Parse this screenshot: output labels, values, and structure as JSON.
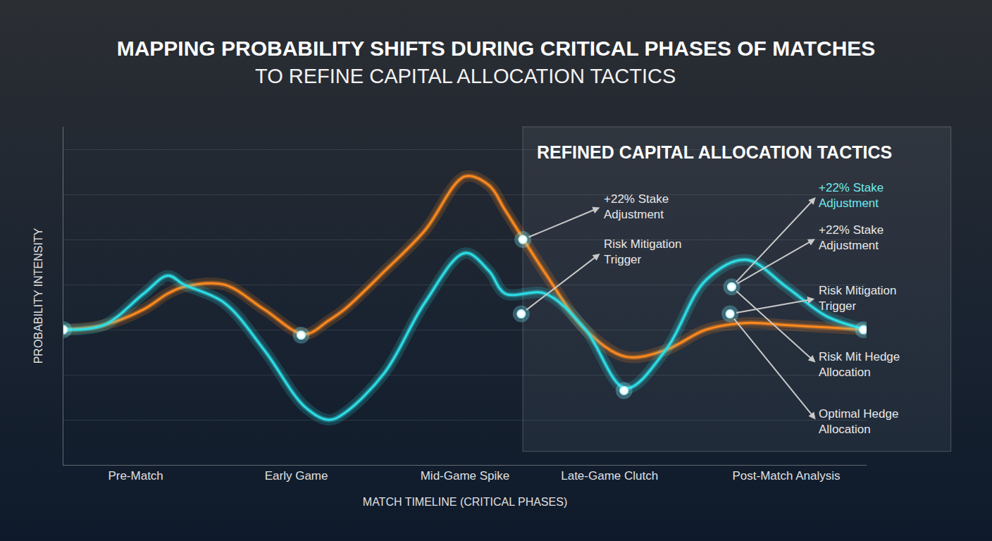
{
  "chart_data": {
    "type": "line",
    "title": "MAPPING PROBABILITY SHIFTS DURING CRITICAL PHASES OF MATCHES",
    "subtitle": "TO REFINE CAPITAL ALLOCATION TACTICS",
    "panel_title": "REFINED CAPITAL ALLOCATION TACTICS",
    "x_label": "MATCH TIMELINE (CRITICAL PHASES)",
    "y_label": "PROBABILITY INTENSITY",
    "x": [
      0,
      5,
      10,
      13,
      15,
      20,
      25,
      30,
      33,
      35,
      40,
      45,
      50,
      53,
      55,
      60,
      65,
      70,
      75,
      80,
      85,
      90,
      95,
      100
    ],
    "series": [
      {
        "color": "#ff8a1e",
        "values": [
          0,
          0.1,
          0.45,
          0.8,
          0.95,
          1.0,
          0.45,
          -0.1,
          0.2,
          0.45,
          1.3,
          2.2,
          3.4,
          3.2,
          2.65,
          1.25,
          0,
          -0.6,
          -0.45,
          0,
          0.15,
          0.1,
          0.05,
          0
        ]
      },
      {
        "color": "#2de0e8",
        "values": [
          0,
          0.1,
          0.8,
          1.2,
          1.0,
          0.6,
          -0.45,
          -1.7,
          -2.0,
          -1.85,
          -0.95,
          0.6,
          1.7,
          1.3,
          0.8,
          0.8,
          0,
          -1.3,
          -0.45,
          1.1,
          1.55,
          0.95,
          0.3,
          0
        ]
      }
    ],
    "highlights": {
      "x": [
        0,
        29.6,
        57.2,
        57,
        69.8,
        83,
        83.2,
        99.6
      ],
      "y": [
        0,
        -0.12,
        2.0,
        0.35,
        -1.35,
        0.35,
        0.95,
        0
      ]
    },
    "annotations": [
      {
        "text": "+22% Stake Adjustment",
        "x": 57.2,
        "y": 2.0
      },
      {
        "text": "Risk Mitigation Trigger",
        "x": 57,
        "y": 0.35
      },
      {
        "text": "+22% Stake Adjustment",
        "x": 83.2,
        "y": 0.95,
        "color": "#6ee9ee"
      },
      {
        "text": "+22% Stake Adjustment",
        "x": 83.2,
        "y": 0.95
      },
      {
        "text": "Risk Mitigation Trigger",
        "x": 83,
        "y": 0.35
      },
      {
        "text": "Risk Mit Hedge Allocation",
        "x": 83.2,
        "y": 0.95
      },
      {
        "text": "Optimal Hedge Allocation",
        "x": 83,
        "y": 0.35
      }
    ],
    "xlim": [
      0,
      100
    ],
    "xticks": [
      {
        "value": 9,
        "label": "Pre-Match"
      },
      {
        "value": 29,
        "label": "Early Game"
      },
      {
        "value": 50,
        "label": "Mid-Game Spike"
      },
      {
        "value": 68,
        "label": "Late-Game Clutch"
      },
      {
        "value": 90,
        "label": "Post-Match Analysis"
      }
    ],
    "ylim": [
      -3,
      4.5
    ],
    "yticks": [
      -2,
      -1,
      0,
      1,
      2,
      3,
      4
    ],
    "grid": true,
    "tick_labels": "x"
  }
}
